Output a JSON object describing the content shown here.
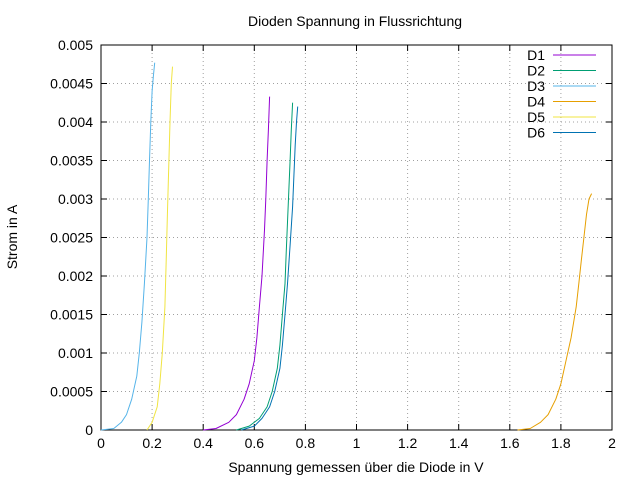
{
  "chart_data": {
    "type": "line",
    "title": "Dioden Spannung in Flussrichtung",
    "xlabel": "Spannung gemessen über die Diode in V",
    "ylabel": "Strom in A",
    "xlim": [
      0,
      2
    ],
    "ylim": [
      0,
      0.005
    ],
    "xticks": [
      "0",
      "0.2",
      "0.4",
      "0.6",
      "0.8",
      "1",
      "1.2",
      "1.4",
      "1.6",
      "1.8",
      "2"
    ],
    "yticks": [
      "0",
      "0.0005",
      "0.001",
      "0.0015",
      "0.002",
      "0.0025",
      "0.003",
      "0.0035",
      "0.004",
      "0.0045",
      "0.005"
    ],
    "grid": true,
    "legend_position": "top-right",
    "series": [
      {
        "name": "D1",
        "color": "#9400d3",
        "x": [
          0.4,
          0.45,
          0.5,
          0.53,
          0.56,
          0.58,
          0.6,
          0.61,
          0.62,
          0.63,
          0.64,
          0.645,
          0.65,
          0.655,
          0.66
        ],
        "y": [
          0.0,
          2e-05,
          0.0001,
          0.0002,
          0.0004,
          0.0006,
          0.0009,
          0.0012,
          0.0016,
          0.002,
          0.0026,
          0.003,
          0.0035,
          0.0039,
          0.00433
        ]
      },
      {
        "name": "D2",
        "color": "#009e73",
        "x": [
          0.53,
          0.58,
          0.62,
          0.65,
          0.67,
          0.69,
          0.7,
          0.71,
          0.72,
          0.725,
          0.73,
          0.735,
          0.74,
          0.745,
          0.75
        ],
        "y": [
          0.0,
          5e-05,
          0.00015,
          0.0003,
          0.0005,
          0.0008,
          0.0011,
          0.0015,
          0.0019,
          0.0023,
          0.0027,
          0.0031,
          0.0035,
          0.0039,
          0.00425
        ]
      },
      {
        "name": "D3",
        "color": "#56b4e9",
        "x": [
          0.0,
          0.05,
          0.08,
          0.1,
          0.12,
          0.14,
          0.15,
          0.16,
          0.17,
          0.18,
          0.185,
          0.19,
          0.195,
          0.2,
          0.205,
          0.21
        ],
        "y": [
          0.0,
          2e-05,
          0.0001,
          0.0002,
          0.0004,
          0.0007,
          0.001,
          0.0014,
          0.0019,
          0.0025,
          0.003,
          0.0035,
          0.004,
          0.0044,
          0.0046,
          0.00477
        ]
      },
      {
        "name": "D4",
        "color": "#e69f00",
        "x": [
          1.63,
          1.68,
          1.72,
          1.75,
          1.78,
          1.8,
          1.82,
          1.84,
          1.86,
          1.87,
          1.88,
          1.89,
          1.9,
          1.91,
          1.92
        ],
        "y": [
          0.0,
          2e-05,
          0.0001,
          0.0002,
          0.0004,
          0.0006,
          0.0009,
          0.0012,
          0.0016,
          0.0019,
          0.0022,
          0.0025,
          0.0028,
          0.003,
          0.00307
        ]
      },
      {
        "name": "D5",
        "color": "#f0e442",
        "x": [
          0.18,
          0.2,
          0.22,
          0.23,
          0.24,
          0.25,
          0.255,
          0.26,
          0.265,
          0.27,
          0.275,
          0.28
        ],
        "y": [
          0.0,
          0.0001,
          0.0003,
          0.0006,
          0.001,
          0.0016,
          0.0022,
          0.0028,
          0.0034,
          0.004,
          0.0045,
          0.00472
        ]
      },
      {
        "name": "D6",
        "color": "#0072b2",
        "x": [
          0.55,
          0.6,
          0.63,
          0.66,
          0.68,
          0.7,
          0.71,
          0.72,
          0.73,
          0.74,
          0.75,
          0.755,
          0.76,
          0.765,
          0.77
        ],
        "y": [
          0.0,
          5e-05,
          0.00015,
          0.0003,
          0.0005,
          0.0008,
          0.0011,
          0.0015,
          0.0019,
          0.0024,
          0.0029,
          0.0033,
          0.0037,
          0.004,
          0.0042
        ]
      }
    ]
  }
}
